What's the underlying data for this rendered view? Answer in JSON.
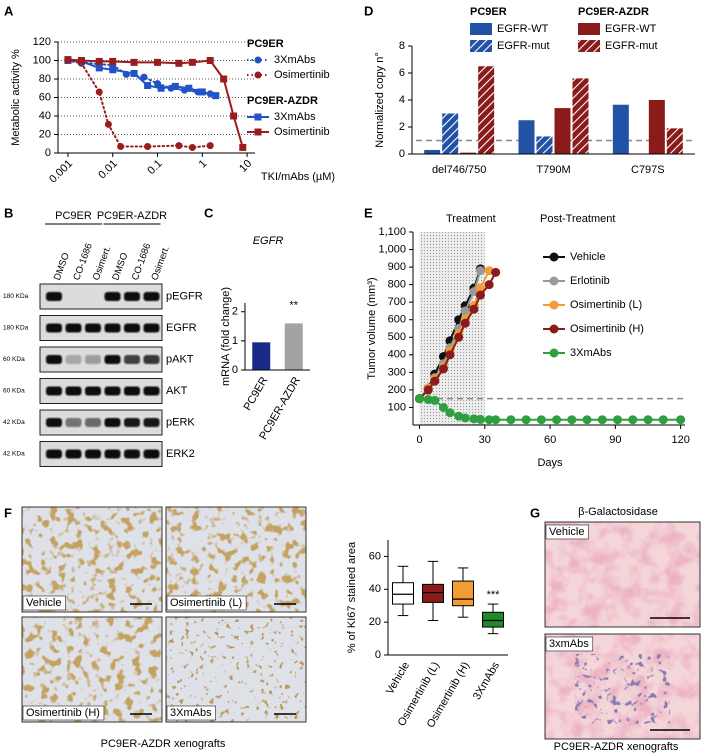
{
  "panel_labels": [
    "A",
    "B",
    "C",
    "D",
    "E",
    "F",
    "G"
  ],
  "chart_data": [
    {
      "type": "line",
      "xscale": "log",
      "xlim": [
        0.0006,
        15
      ],
      "xticks": [
        0.001,
        0.01,
        0.1,
        1,
        10
      ],
      "ylim": [
        0,
        120
      ],
      "yticks": [
        0,
        20,
        40,
        60,
        80,
        100,
        120
      ],
      "grid": true,
      "xlabel": "TKI/mAbs (µM)",
      "ylabel": "Metabolic activity %",
      "legend_groups": [
        "PC9ER",
        "PC9ER-AZDR"
      ],
      "series": [
        {
          "name": "3XmAbs",
          "group": 0,
          "color": "#2152c6",
          "line": "dotted",
          "marker": "circle",
          "x": [
            0.001,
            0.002,
            0.005,
            0.01,
            0.02,
            0.05,
            0.1,
            0.2,
            0.4,
            0.8,
            1.5
          ],
          "values": [
            100,
            98,
            96,
            95,
            85,
            82,
            75,
            70,
            68,
            66,
            64
          ]
        },
        {
          "name": "Osimertinib",
          "group": 0,
          "color": "#9b1c1c",
          "line": "dotted",
          "marker": "circle",
          "x": [
            0.001,
            0.002,
            0.005,
            0.008,
            0.015,
            0.06,
            0.3,
            0.6,
            1.5
          ],
          "values": [
            100,
            97,
            66,
            31,
            7,
            7,
            8,
            6,
            8
          ]
        },
        {
          "name": "3XmAbs",
          "group": 1,
          "color": "#2152c6",
          "line": "solid",
          "marker": "square",
          "x": [
            0.001,
            0.002,
            0.005,
            0.01,
            0.03,
            0.06,
            0.12,
            0.25,
            0.5,
            1,
            2
          ],
          "values": [
            100,
            99,
            92,
            90,
            86,
            73,
            70,
            72,
            70,
            66,
            62
          ]
        },
        {
          "name": "Osimertinib",
          "group": 1,
          "color": "#9b1c1c",
          "line": "solid",
          "marker": "square",
          "x": [
            0.001,
            0.002,
            0.005,
            0.01,
            0.03,
            0.1,
            0.3,
            0.6,
            1.5,
            3,
            5,
            8
          ],
          "values": [
            101,
            100,
            99,
            99,
            98,
            98,
            97,
            98,
            100,
            80,
            40,
            6
          ]
        }
      ]
    },
    {
      "type": "bar",
      "title": "EGFR",
      "categories": [
        "PC9ER",
        "PC9ER-AZDR"
      ],
      "values": [
        0.95,
        1.6
      ],
      "colors": [
        "#1a2a8a",
        "#a3a3a3"
      ],
      "ylim": [
        0,
        2.3
      ],
      "yticks": [
        0,
        1,
        2
      ],
      "ylabel": "mRNA (fold change)",
      "annotation": "**"
    },
    {
      "type": "bar",
      "categories": [
        "del746/750",
        "T790M",
        "C797S"
      ],
      "ylim": [
        0,
        8
      ],
      "yticks": [
        0,
        2,
        4,
        6,
        8
      ],
      "ylabel": "Normalized copy n°",
      "hline": 1,
      "legend_groups": [
        "PC9ER",
        "PC9ER-AZDR"
      ],
      "series": [
        {
          "name": "EGFR-WT",
          "group": 0,
          "color": "#2152a6",
          "values": [
            0.3,
            2.5,
            3.65
          ]
        },
        {
          "name": "EGFR-mut",
          "group": 0,
          "color": "#2152a6",
          "pattern": "hatch",
          "values": [
            3.0,
            1.3,
            null
          ]
        },
        {
          "name": "EGFR-WT",
          "group": 1,
          "color": "#8b1a1a",
          "values": [
            0.1,
            3.4,
            4.0
          ]
        },
        {
          "name": "EGFR-mut",
          "group": 1,
          "color": "#8b1a1a",
          "pattern": "hatch",
          "values": [
            6.5,
            5.6,
            1.9
          ]
        }
      ]
    },
    {
      "type": "line",
      "xlim": [
        -3,
        122
      ],
      "xticks": [
        0,
        30,
        60,
        90,
        120
      ],
      "ylim": [
        0,
        1100
      ],
      "yticks": [
        100,
        200,
        300,
        400,
        500,
        600,
        700,
        800,
        900,
        {
          "value": 1000,
          "label": "1,000"
        },
        {
          "value": 1100,
          "label": "1,100"
        }
      ],
      "xlabel": "Days",
      "ylabel": "Tumor volume (mm³)",
      "shade": [
        0,
        30
      ],
      "annotations": [
        "Treatment",
        "Post-Treatment"
      ],
      "hline": 150,
      "series": [
        {
          "name": "Vehicle",
          "color": "#111111",
          "x": [
            0,
            4,
            7,
            11,
            14,
            18,
            21,
            25,
            28
          ],
          "values": [
            150,
            210,
            290,
            390,
            480,
            600,
            680,
            780,
            890
          ]
        },
        {
          "name": "Erlotinib",
          "color": "#999999",
          "x": [
            0,
            4,
            7,
            11,
            14,
            18,
            21,
            25,
            28
          ],
          "values": [
            150,
            200,
            270,
            350,
            440,
            550,
            650,
            760,
            880
          ]
        },
        {
          "name": "Osimertinib (L)",
          "color": "#f39c33",
          "x": [
            0,
            4,
            7,
            11,
            14,
            18,
            21,
            25,
            28,
            32
          ],
          "values": [
            150,
            210,
            260,
            330,
            420,
            520,
            600,
            680,
            780,
            880
          ]
        },
        {
          "name": "Osimertinib (H)",
          "color": "#8b1a1a",
          "x": [
            0,
            4,
            7,
            11,
            14,
            18,
            21,
            25,
            28,
            32,
            35
          ],
          "values": [
            150,
            200,
            250,
            320,
            400,
            500,
            580,
            660,
            740,
            800,
            870
          ]
        },
        {
          "name": "3XmAbs",
          "color": "#2e9e3e",
          "x": [
            0,
            4,
            7,
            11,
            14,
            18,
            21,
            25,
            28,
            32,
            35,
            42,
            49,
            56,
            63,
            70,
            77,
            84,
            91,
            98,
            105,
            112,
            120
          ],
          "values": [
            150,
            145,
            140,
            100,
            70,
            50,
            40,
            35,
            32,
            30,
            30,
            30,
            30,
            30,
            30,
            30,
            30,
            30,
            30,
            30,
            30,
            30,
            30
          ]
        }
      ]
    },
    {
      "type": "box",
      "categories": [
        "Vehicle",
        "Osimertinib (L)",
        "Osimertinib (H)",
        "3XmAbs"
      ],
      "boxes": [
        {
          "min": 24,
          "q1": 31,
          "median": 37,
          "q3": 44,
          "max": 54
        },
        {
          "min": 21,
          "q1": 32,
          "median": 38,
          "q3": 43,
          "max": 57
        },
        {
          "min": 23,
          "q1": 30,
          "median": 34,
          "q3": 45,
          "max": 53
        },
        {
          "min": 13,
          "q1": 17,
          "median": 21,
          "q3": 26,
          "max": 31
        }
      ],
      "colors": [
        "#ffffff",
        "#8b1a1a",
        "#f39c33",
        "#1f8a2a"
      ],
      "ylim": [
        0,
        70
      ],
      "yticks": [
        0,
        20,
        40,
        60
      ],
      "ylabel": "% of KI67 stained area",
      "annotation": "***"
    }
  ],
  "blot": {
    "groups": [
      "PC9ER",
      "PC9ER-AZDR"
    ],
    "lanes": [
      "DMSO",
      "CO-1686",
      "Osimert.",
      "DMSO",
      "CO-1686",
      "Osimert."
    ],
    "rows": [
      {
        "size": "180 KDa",
        "protein": "pEGFR"
      },
      {
        "size": "180 KDa",
        "protein": "EGFR"
      },
      {
        "size": "60 KDa",
        "protein": "pAKT"
      },
      {
        "size": "60 KDa",
        "protein": "AKT"
      },
      {
        "size": "42 KDa",
        "protein": "pERK"
      },
      {
        "size": "42 KDa",
        "protein": "ERK2"
      }
    ]
  },
  "histology_f": {
    "panels": [
      "Vehicle",
      "Osimertinib (L)",
      "Osimertinib (H)",
      "3XmAbs"
    ],
    "caption": "PC9ER-AZDR xenografts"
  },
  "histology_g": {
    "title": "β-Galactosidase",
    "panels": [
      "Vehicle",
      "3xmAbs"
    ],
    "caption": "PC9ER-AZDR xenografts"
  }
}
